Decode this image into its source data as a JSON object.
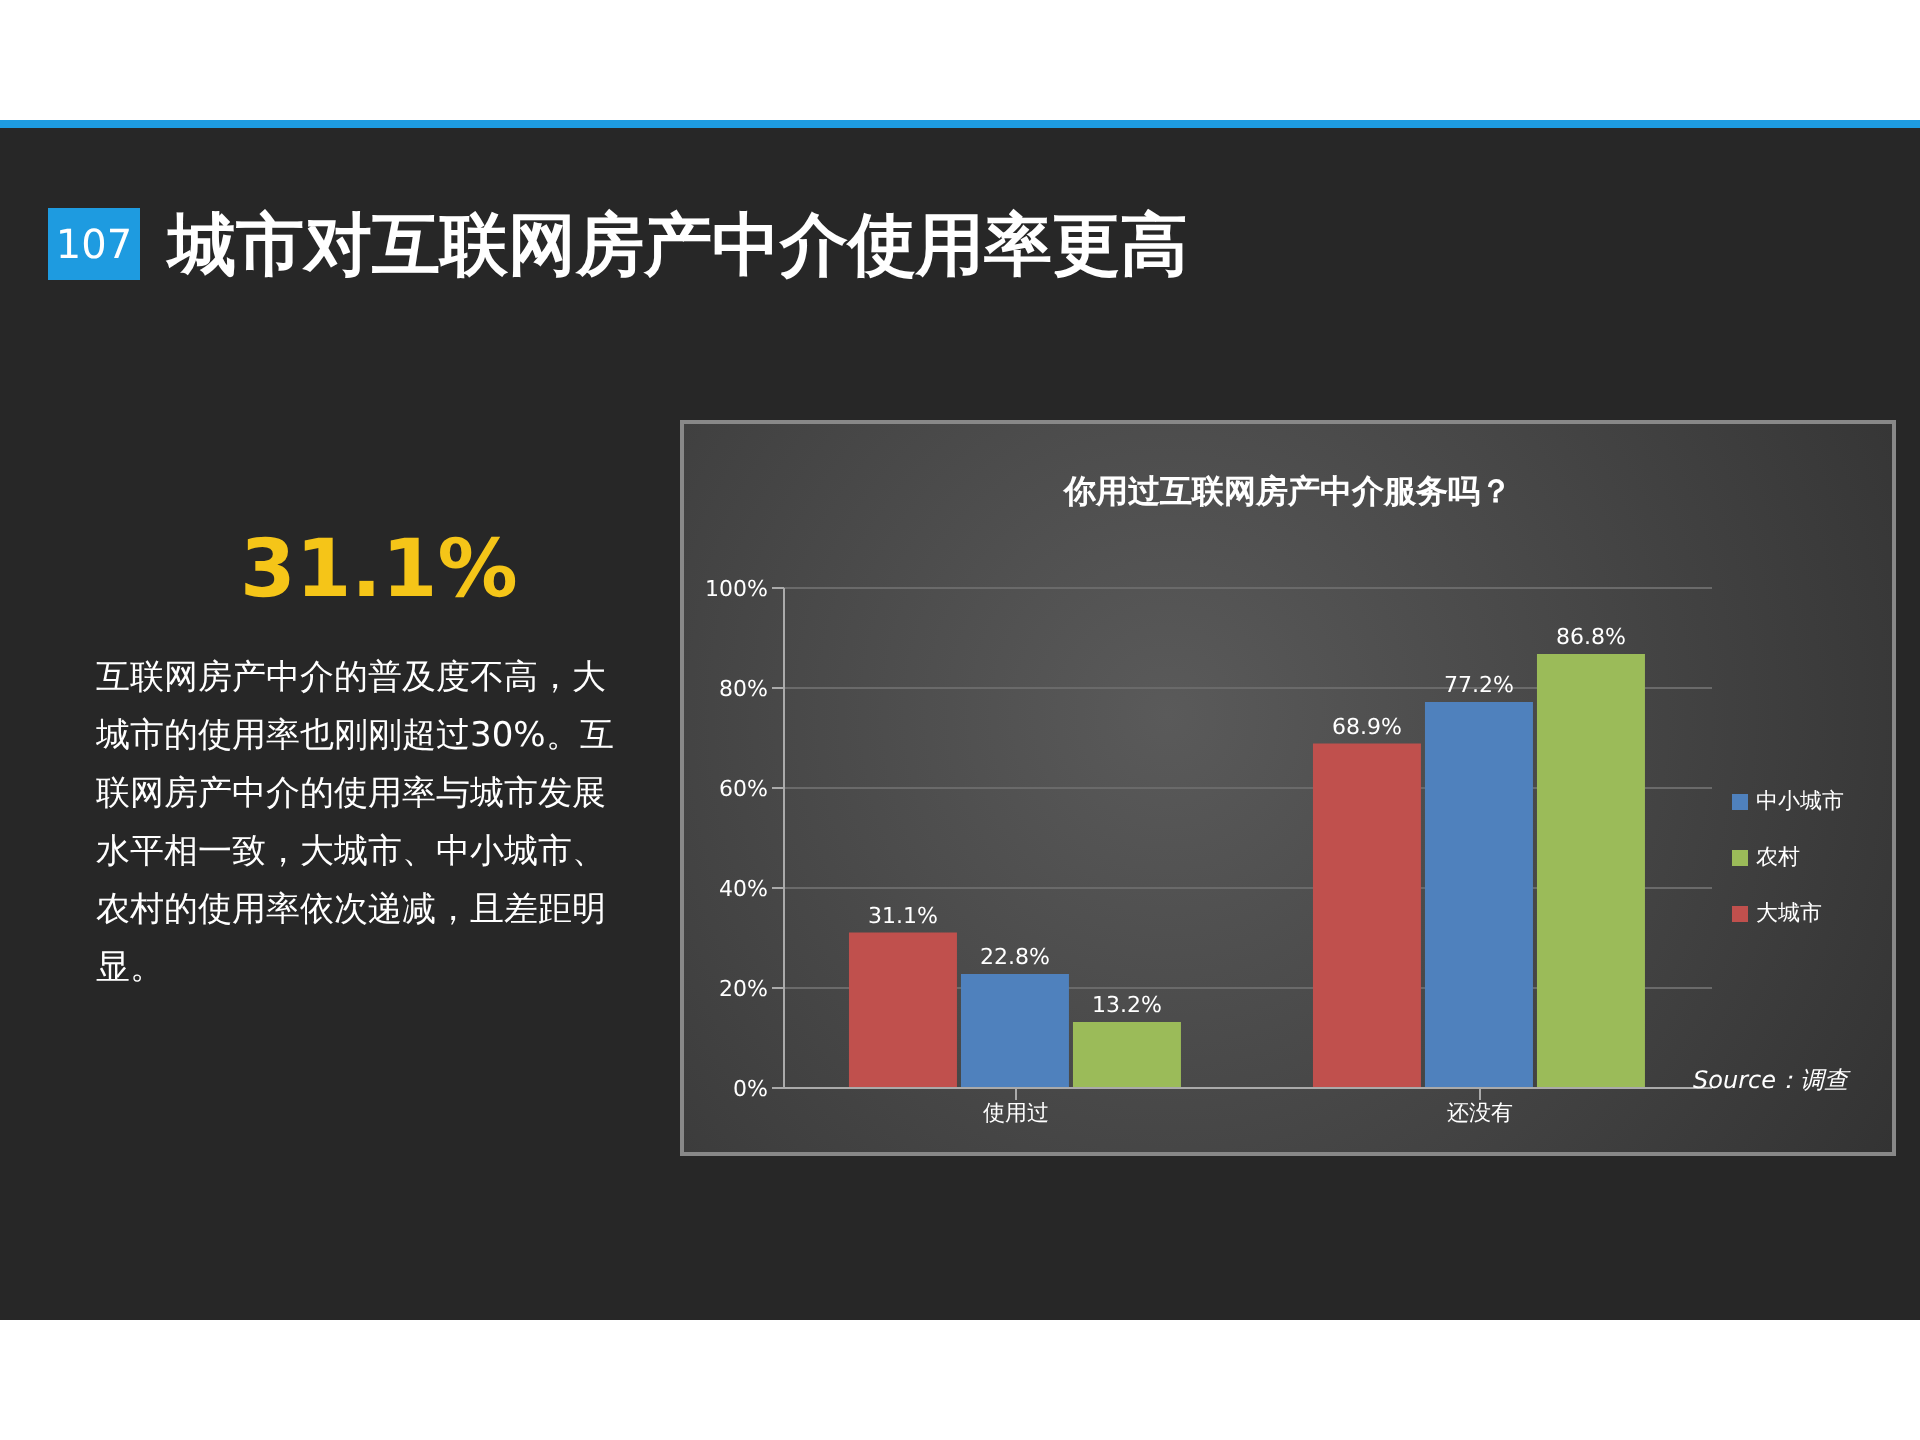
{
  "chart_data": {
    "type": "bar",
    "title": "城市对互联网房产中介使用率更高",
    "subtitle": "你用过互联网房产中介服务吗？",
    "categories": [
      "使用过",
      "还没有"
    ],
    "series": [
      {
        "name": "大城市",
        "color": "#c0504d",
        "values": [
          31.1,
          68.9
        ],
        "value_labels": [
          "31.1%",
          "68.9%"
        ]
      },
      {
        "name": "中小城市",
        "color": "#4f81bd",
        "values": [
          22.8,
          77.2
        ],
        "value_labels": [
          "22.8%",
          "77.2%"
        ]
      },
      {
        "name": "农村",
        "color": "#9bbb59",
        "values": [
          13.2,
          86.8
        ],
        "value_labels": [
          "13.2%",
          "86.8%"
        ]
      }
    ],
    "ylim": [
      0,
      100
    ],
    "yticks": [
      {
        "value": 0,
        "label": "0%"
      },
      {
        "value": 20,
        "label": "20%"
      },
      {
        "value": 40,
        "label": "40%"
      },
      {
        "value": 60,
        "label": "60%"
      },
      {
        "value": 80,
        "label": "80%"
      },
      {
        "value": 100,
        "label": "100%"
      }
    ],
    "grid": "y",
    "legend": "right",
    "annotations": [
      "107",
      "31.1%",
      "互联网房产中介的普及度不高，大城市的使用率也刚刚超过30%。互联网房产中介的使用率与城市发展水平相一致，大城市、中小城市、农村的使用率依次递减，且差距明显。",
      "Source：调查"
    ]
  }
}
